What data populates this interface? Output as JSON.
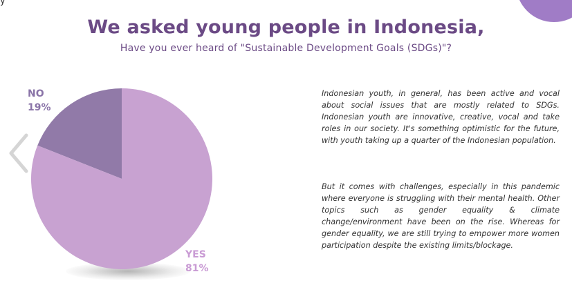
{
  "title": "We asked young people in Indonesia,",
  "subtitle": "Have you ever heard of \"Sustainable Development Goals (SDGs)\"?",
  "top_clipped_text": "y",
  "chart_data": {
    "type": "pie",
    "slices": [
      {
        "label": "NO",
        "value": 19,
        "value_text": "19%",
        "color": "#917aa8"
      },
      {
        "label": "YES",
        "value": 81,
        "value_text": "81%",
        "color": "#c8a2d1"
      }
    ],
    "label_colors": {
      "NO": "#8a74a8",
      "YES": "#c99bd4"
    }
  },
  "paragraphs": [
    "Indonesian youth, in general, has been active and vocal about social issues that are mostly related to SDGs. Indonesian youth are innovative, creative, vocal and take roles in our society. It's something optimistic for the future, with youth taking up a quarter of the Indonesian population.",
    "But it comes with challenges, especially in this pandemic where everyone is struggling with their mental health. Other topics such as gender equality & climate change/environment have been on the rise. Whereas for gender equality, we are still trying to empower more women participation despite the existing limits/blockage."
  ],
  "colors": {
    "heading": "#6b4a85",
    "accent_blob": "#a07cc6",
    "arrow": "#d5d5d5"
  },
  "icons": {
    "nav_prev": "chevron-left-icon"
  }
}
